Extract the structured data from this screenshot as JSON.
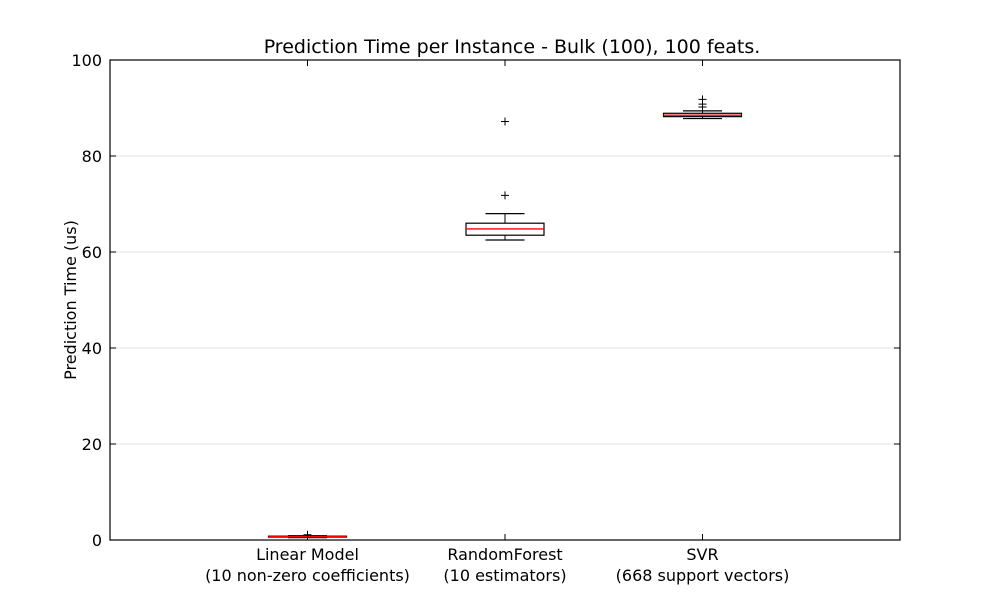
{
  "chart_data": {
    "type": "box",
    "title": "Prediction Time per Instance - Bulk (100), 100 feats.",
    "xlabel": "",
    "ylabel": "Prediction Time (us)",
    "ylim": [
      0,
      100
    ],
    "yticks": [
      0,
      20,
      40,
      60,
      80,
      100
    ],
    "grid": "horizontal",
    "categories": [
      [
        "Linear Model",
        "(10 non-zero coefficients)"
      ],
      [
        "RandomForest",
        "(10 estimators)"
      ],
      [
        "SVR",
        "(668 support vectors)"
      ]
    ],
    "boxes": [
      {
        "whisker_low": 0.5,
        "q1": 0.6,
        "median": 0.7,
        "q3": 0.8,
        "whisker_high": 0.9,
        "outliers": [
          1.1
        ]
      },
      {
        "whisker_low": 62.5,
        "q1": 63.5,
        "median": 64.8,
        "q3": 66.0,
        "whisker_high": 68.0,
        "outliers": [
          71.8,
          87.2
        ]
      },
      {
        "whisker_low": 87.8,
        "q1": 88.2,
        "median": 88.5,
        "q3": 88.9,
        "whisker_high": 89.4,
        "outliers": [
          90.2,
          90.8,
          91.8
        ]
      }
    ],
    "colors": {
      "median": "#ff0000",
      "box": "#000000",
      "grid": "#e6e6e6"
    }
  }
}
